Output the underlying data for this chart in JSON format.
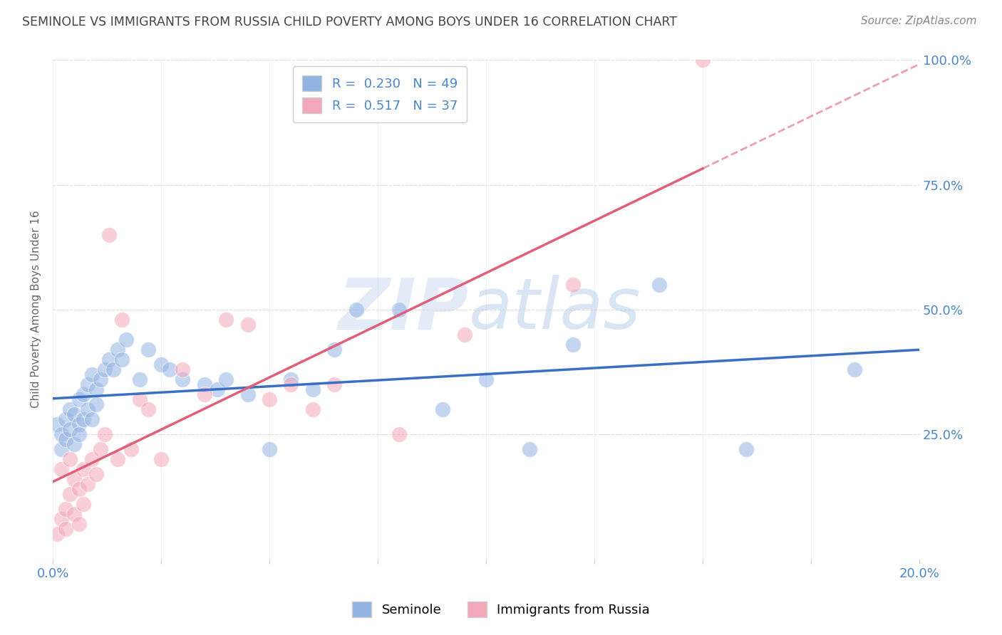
{
  "title": "SEMINOLE VS IMMIGRANTS FROM RUSSIA CHILD POVERTY AMONG BOYS UNDER 16 CORRELATION CHART",
  "source": "Source: ZipAtlas.com",
  "ylabel": "Child Poverty Among Boys Under 16",
  "watermark_zip": "ZIP",
  "watermark_atlas": "atlas",
  "series1_label": "Seminole",
  "series2_label": "Immigrants from Russia",
  "series1_color": "#92b4e3",
  "series2_color": "#f4a7b9",
  "series1_line_color": "#3a6fc4",
  "series2_line_color": "#e0607a",
  "series1_R": 0.23,
  "series1_N": 49,
  "series2_R": 0.517,
  "series2_N": 37,
  "xlim": [
    0.0,
    0.2
  ],
  "ylim": [
    0.0,
    1.0
  ],
  "xticks": [
    0.0,
    0.025,
    0.05,
    0.075,
    0.1,
    0.125,
    0.15,
    0.175,
    0.2
  ],
  "yticks": [
    0.0,
    0.25,
    0.5,
    0.75,
    1.0
  ],
  "grid_color": "#cccccc",
  "background_color": "#ffffff",
  "title_color": "#444444",
  "axis_color": "#4a86c8",
  "series1_x": [
    0.001,
    0.002,
    0.002,
    0.003,
    0.003,
    0.004,
    0.004,
    0.005,
    0.005,
    0.006,
    0.006,
    0.006,
    0.007,
    0.007,
    0.008,
    0.008,
    0.009,
    0.009,
    0.01,
    0.01,
    0.011,
    0.012,
    0.013,
    0.014,
    0.015,
    0.016,
    0.017,
    0.02,
    0.022,
    0.025,
    0.027,
    0.03,
    0.035,
    0.038,
    0.04,
    0.045,
    0.05,
    0.055,
    0.06,
    0.065,
    0.07,
    0.08,
    0.09,
    0.1,
    0.11,
    0.12,
    0.14,
    0.16,
    0.185
  ],
  "series1_y": [
    0.27,
    0.25,
    0.22,
    0.28,
    0.24,
    0.3,
    0.26,
    0.29,
    0.23,
    0.32,
    0.27,
    0.25,
    0.33,
    0.28,
    0.35,
    0.3,
    0.37,
    0.28,
    0.34,
    0.31,
    0.36,
    0.38,
    0.4,
    0.38,
    0.42,
    0.4,
    0.44,
    0.36,
    0.42,
    0.39,
    0.38,
    0.36,
    0.35,
    0.34,
    0.36,
    0.33,
    0.22,
    0.36,
    0.34,
    0.42,
    0.5,
    0.5,
    0.3,
    0.36,
    0.22,
    0.43,
    0.55,
    0.22,
    0.38
  ],
  "series2_x": [
    0.001,
    0.002,
    0.002,
    0.003,
    0.003,
    0.004,
    0.004,
    0.005,
    0.005,
    0.006,
    0.006,
    0.007,
    0.007,
    0.008,
    0.009,
    0.01,
    0.011,
    0.012,
    0.013,
    0.015,
    0.016,
    0.018,
    0.02,
    0.022,
    0.025,
    0.03,
    0.035,
    0.04,
    0.045,
    0.05,
    0.055,
    0.06,
    0.065,
    0.08,
    0.095,
    0.12,
    0.15
  ],
  "series2_y": [
    0.05,
    0.08,
    0.18,
    0.1,
    0.06,
    0.13,
    0.2,
    0.09,
    0.16,
    0.07,
    0.14,
    0.11,
    0.18,
    0.15,
    0.2,
    0.17,
    0.22,
    0.25,
    0.65,
    0.2,
    0.48,
    0.22,
    0.32,
    0.3,
    0.2,
    0.38,
    0.33,
    0.48,
    0.47,
    0.32,
    0.35,
    0.3,
    0.35,
    0.25,
    0.45,
    0.55,
    1.0
  ]
}
